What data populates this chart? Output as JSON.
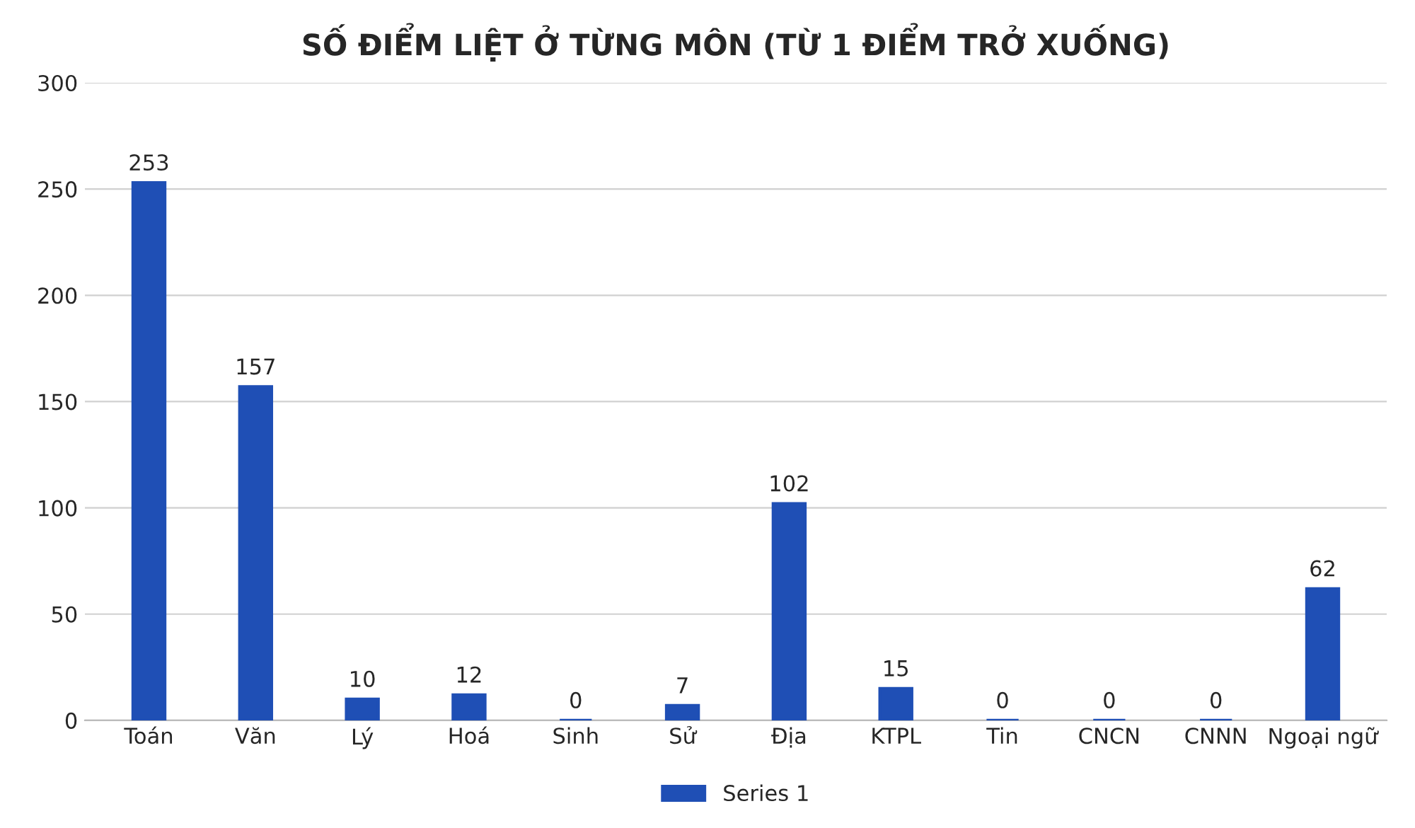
{
  "chart_data": {
    "type": "bar",
    "title": "SỐ ĐIỂM LIỆT Ở TỪNG MÔN (TỪ 1 ĐIỂM TRỞ XUỐNG)",
    "categories": [
      "Toán",
      "Văn",
      "Lý",
      "Hoá",
      "Sinh",
      "Sử",
      "Địa",
      "KTPL",
      "Tin",
      "CNCN",
      "CNNN",
      "Ngoại ngữ"
    ],
    "series": [
      {
        "name": "Series 1",
        "color": "#1f4fb5",
        "values": [
          253,
          157,
          10,
          12,
          0,
          7,
          102,
          15,
          0,
          0,
          0,
          62
        ]
      }
    ],
    "ylim": [
      0,
      300
    ],
    "yticks": [
      0,
      50,
      100,
      150,
      200,
      250,
      300
    ],
    "grid": "y",
    "legend": "bottom",
    "data_labels": true
  }
}
